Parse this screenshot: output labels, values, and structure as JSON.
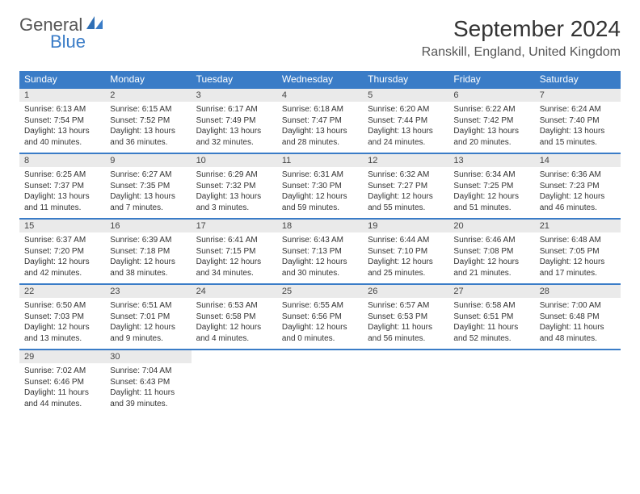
{
  "logo": {
    "general": "General",
    "blue": "Blue"
  },
  "title": "September 2024",
  "location": "Ranskill, England, United Kingdom",
  "weekdays": [
    "Sunday",
    "Monday",
    "Tuesday",
    "Wednesday",
    "Thursday",
    "Friday",
    "Saturday"
  ],
  "colors": {
    "header_bg": "#3a7cc7",
    "header_fg": "#ffffff",
    "day_header_bg": "#eaeaea",
    "row_border": "#3a7cc7",
    "text": "#333333",
    "logo_blue": "#3a7cc7",
    "logo_gray": "#555555",
    "background": "#ffffff"
  },
  "typography": {
    "title_fontsize": 28,
    "location_fontsize": 16,
    "weekday_fontsize": 12,
    "daynum_fontsize": 11,
    "body_fontsize": 10
  },
  "days": [
    {
      "n": "1",
      "sunrise": "Sunrise: 6:13 AM",
      "sunset": "Sunset: 7:54 PM",
      "day1": "Daylight: 13 hours",
      "day2": "and 40 minutes."
    },
    {
      "n": "2",
      "sunrise": "Sunrise: 6:15 AM",
      "sunset": "Sunset: 7:52 PM",
      "day1": "Daylight: 13 hours",
      "day2": "and 36 minutes."
    },
    {
      "n": "3",
      "sunrise": "Sunrise: 6:17 AM",
      "sunset": "Sunset: 7:49 PM",
      "day1": "Daylight: 13 hours",
      "day2": "and 32 minutes."
    },
    {
      "n": "4",
      "sunrise": "Sunrise: 6:18 AM",
      "sunset": "Sunset: 7:47 PM",
      "day1": "Daylight: 13 hours",
      "day2": "and 28 minutes."
    },
    {
      "n": "5",
      "sunrise": "Sunrise: 6:20 AM",
      "sunset": "Sunset: 7:44 PM",
      "day1": "Daylight: 13 hours",
      "day2": "and 24 minutes."
    },
    {
      "n": "6",
      "sunrise": "Sunrise: 6:22 AM",
      "sunset": "Sunset: 7:42 PM",
      "day1": "Daylight: 13 hours",
      "day2": "and 20 minutes."
    },
    {
      "n": "7",
      "sunrise": "Sunrise: 6:24 AM",
      "sunset": "Sunset: 7:40 PM",
      "day1": "Daylight: 13 hours",
      "day2": "and 15 minutes."
    },
    {
      "n": "8",
      "sunrise": "Sunrise: 6:25 AM",
      "sunset": "Sunset: 7:37 PM",
      "day1": "Daylight: 13 hours",
      "day2": "and 11 minutes."
    },
    {
      "n": "9",
      "sunrise": "Sunrise: 6:27 AM",
      "sunset": "Sunset: 7:35 PM",
      "day1": "Daylight: 13 hours",
      "day2": "and 7 minutes."
    },
    {
      "n": "10",
      "sunrise": "Sunrise: 6:29 AM",
      "sunset": "Sunset: 7:32 PM",
      "day1": "Daylight: 13 hours",
      "day2": "and 3 minutes."
    },
    {
      "n": "11",
      "sunrise": "Sunrise: 6:31 AM",
      "sunset": "Sunset: 7:30 PM",
      "day1": "Daylight: 12 hours",
      "day2": "and 59 minutes."
    },
    {
      "n": "12",
      "sunrise": "Sunrise: 6:32 AM",
      "sunset": "Sunset: 7:27 PM",
      "day1": "Daylight: 12 hours",
      "day2": "and 55 minutes."
    },
    {
      "n": "13",
      "sunrise": "Sunrise: 6:34 AM",
      "sunset": "Sunset: 7:25 PM",
      "day1": "Daylight: 12 hours",
      "day2": "and 51 minutes."
    },
    {
      "n": "14",
      "sunrise": "Sunrise: 6:36 AM",
      "sunset": "Sunset: 7:23 PM",
      "day1": "Daylight: 12 hours",
      "day2": "and 46 minutes."
    },
    {
      "n": "15",
      "sunrise": "Sunrise: 6:37 AM",
      "sunset": "Sunset: 7:20 PM",
      "day1": "Daylight: 12 hours",
      "day2": "and 42 minutes."
    },
    {
      "n": "16",
      "sunrise": "Sunrise: 6:39 AM",
      "sunset": "Sunset: 7:18 PM",
      "day1": "Daylight: 12 hours",
      "day2": "and 38 minutes."
    },
    {
      "n": "17",
      "sunrise": "Sunrise: 6:41 AM",
      "sunset": "Sunset: 7:15 PM",
      "day1": "Daylight: 12 hours",
      "day2": "and 34 minutes."
    },
    {
      "n": "18",
      "sunrise": "Sunrise: 6:43 AM",
      "sunset": "Sunset: 7:13 PM",
      "day1": "Daylight: 12 hours",
      "day2": "and 30 minutes."
    },
    {
      "n": "19",
      "sunrise": "Sunrise: 6:44 AM",
      "sunset": "Sunset: 7:10 PM",
      "day1": "Daylight: 12 hours",
      "day2": "and 25 minutes."
    },
    {
      "n": "20",
      "sunrise": "Sunrise: 6:46 AM",
      "sunset": "Sunset: 7:08 PM",
      "day1": "Daylight: 12 hours",
      "day2": "and 21 minutes."
    },
    {
      "n": "21",
      "sunrise": "Sunrise: 6:48 AM",
      "sunset": "Sunset: 7:05 PM",
      "day1": "Daylight: 12 hours",
      "day2": "and 17 minutes."
    },
    {
      "n": "22",
      "sunrise": "Sunrise: 6:50 AM",
      "sunset": "Sunset: 7:03 PM",
      "day1": "Daylight: 12 hours",
      "day2": "and 13 minutes."
    },
    {
      "n": "23",
      "sunrise": "Sunrise: 6:51 AM",
      "sunset": "Sunset: 7:01 PM",
      "day1": "Daylight: 12 hours",
      "day2": "and 9 minutes."
    },
    {
      "n": "24",
      "sunrise": "Sunrise: 6:53 AM",
      "sunset": "Sunset: 6:58 PM",
      "day1": "Daylight: 12 hours",
      "day2": "and 4 minutes."
    },
    {
      "n": "25",
      "sunrise": "Sunrise: 6:55 AM",
      "sunset": "Sunset: 6:56 PM",
      "day1": "Daylight: 12 hours",
      "day2": "and 0 minutes."
    },
    {
      "n": "26",
      "sunrise": "Sunrise: 6:57 AM",
      "sunset": "Sunset: 6:53 PM",
      "day1": "Daylight: 11 hours",
      "day2": "and 56 minutes."
    },
    {
      "n": "27",
      "sunrise": "Sunrise: 6:58 AM",
      "sunset": "Sunset: 6:51 PM",
      "day1": "Daylight: 11 hours",
      "day2": "and 52 minutes."
    },
    {
      "n": "28",
      "sunrise": "Sunrise: 7:00 AM",
      "sunset": "Sunset: 6:48 PM",
      "day1": "Daylight: 11 hours",
      "day2": "and 48 minutes."
    },
    {
      "n": "29",
      "sunrise": "Sunrise: 7:02 AM",
      "sunset": "Sunset: 6:46 PM",
      "day1": "Daylight: 11 hours",
      "day2": "and 44 minutes."
    },
    {
      "n": "30",
      "sunrise": "Sunrise: 7:04 AM",
      "sunset": "Sunset: 6:43 PM",
      "day1": "Daylight: 11 hours",
      "day2": "and 39 minutes."
    }
  ],
  "grid": {
    "rows": 5,
    "cols": 7,
    "start_offset": 0,
    "total_days": 30
  }
}
